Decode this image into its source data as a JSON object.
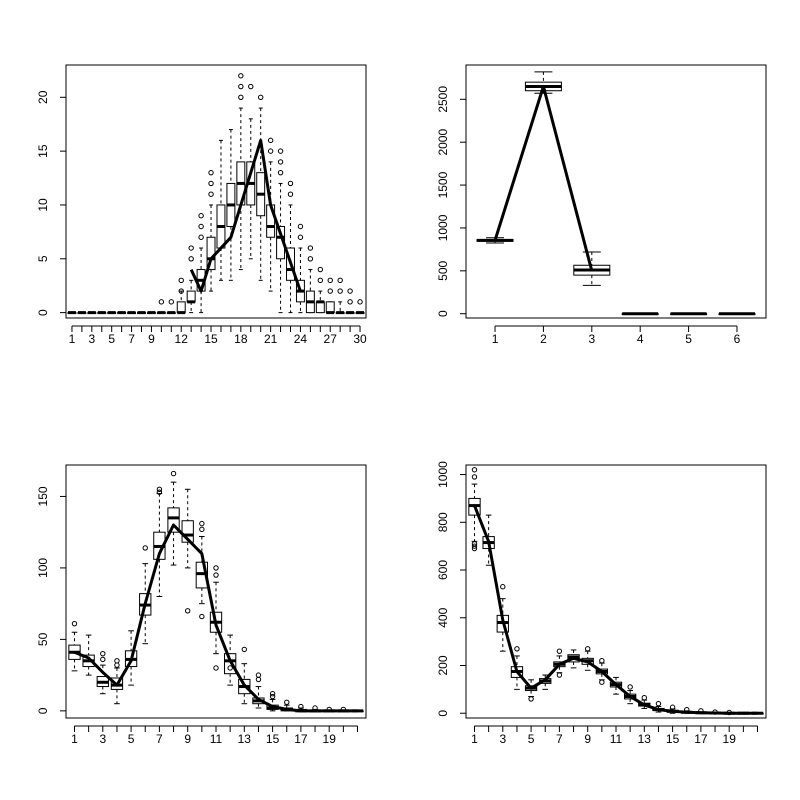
{
  "chart_data": [
    {
      "type": "box",
      "categories": [
        1,
        2,
        3,
        4,
        5,
        6,
        7,
        8,
        9,
        10,
        11,
        12,
        13,
        14,
        15,
        16,
        17,
        18,
        19,
        20,
        21,
        22,
        23,
        24,
        25,
        26,
        27,
        28,
        29,
        30
      ],
      "x_tick_labels": [
        "1",
        "3",
        "5",
        "7",
        "9",
        "12",
        "15",
        "18",
        "21",
        "24",
        "27",
        "30"
      ],
      "y_ticks": [
        0,
        5,
        10,
        15,
        20
      ],
      "ylim": [
        -0.5,
        23
      ],
      "boxes": [
        [
          0,
          0,
          0,
          0,
          0
        ],
        [
          0,
          0,
          0,
          0,
          0
        ],
        [
          0,
          0,
          0,
          0,
          0
        ],
        [
          0,
          0,
          0,
          0,
          0
        ],
        [
          0,
          0,
          0,
          0,
          0
        ],
        [
          0,
          0,
          0,
          0,
          0
        ],
        [
          0,
          0,
          0,
          0,
          0
        ],
        [
          0,
          0,
          0,
          0,
          0
        ],
        [
          0,
          0,
          0,
          0,
          0
        ],
        [
          0,
          0,
          0,
          0,
          0
        ],
        [
          0,
          0,
          0,
          0,
          0
        ],
        [
          0,
          0,
          0,
          1,
          2
        ],
        [
          0,
          1,
          1,
          2,
          3
        ],
        [
          0,
          2,
          3,
          4,
          6
        ],
        [
          2,
          4,
          5,
          7,
          10
        ],
        [
          3,
          6,
          8,
          10,
          16
        ],
        [
          3,
          8,
          10,
          12,
          17
        ],
        [
          4,
          10,
          12,
          14,
          19
        ],
        [
          5,
          10,
          12,
          14,
          18
        ],
        [
          3,
          9,
          11,
          13,
          19
        ],
        [
          2,
          7,
          8,
          10,
          14
        ],
        [
          0,
          5,
          7,
          8,
          12
        ],
        [
          0,
          3,
          4,
          6,
          10
        ],
        [
          0,
          1,
          2,
          3,
          6
        ],
        [
          0,
          0,
          1,
          2,
          4
        ],
        [
          0,
          0,
          1,
          1,
          2
        ],
        [
          0,
          0,
          0,
          1,
          1
        ],
        [
          0,
          0,
          0,
          0,
          1
        ],
        [
          0,
          0,
          0,
          0,
          0
        ],
        [
          0,
          0,
          0,
          0,
          0
        ]
      ],
      "outliers": [
        [
          10,
          1
        ],
        [
          11,
          1
        ],
        [
          12,
          2
        ],
        [
          12,
          3
        ],
        [
          13,
          5
        ],
        [
          13,
          6
        ],
        [
          14,
          7
        ],
        [
          14,
          8
        ],
        [
          14,
          9
        ],
        [
          15,
          11
        ],
        [
          15,
          12
        ],
        [
          15,
          13
        ],
        [
          18,
          20
        ],
        [
          18,
          21
        ],
        [
          18,
          22
        ],
        [
          19,
          21
        ],
        [
          20,
          20
        ],
        [
          21,
          15
        ],
        [
          21,
          16
        ],
        [
          22,
          13
        ],
        [
          22,
          14
        ],
        [
          22,
          15
        ],
        [
          23,
          11
        ],
        [
          23,
          12
        ],
        [
          24,
          7
        ],
        [
          24,
          8
        ],
        [
          25,
          5
        ],
        [
          25,
          6
        ],
        [
          26,
          3
        ],
        [
          26,
          4
        ],
        [
          27,
          2
        ],
        [
          27,
          3
        ],
        [
          28,
          2
        ],
        [
          28,
          3
        ],
        [
          29,
          1
        ],
        [
          29,
          2
        ],
        [
          30,
          1
        ]
      ],
      "line": [
        [
          13,
          4
        ],
        [
          14,
          2
        ],
        [
          15,
          5
        ],
        [
          17,
          7
        ],
        [
          20,
          16
        ],
        [
          21,
          10
        ],
        [
          24,
          2
        ]
      ]
    },
    {
      "type": "box",
      "categories": [
        1,
        2,
        3,
        4,
        5,
        6
      ],
      "x_tick_labels": [
        "1",
        "2",
        "3",
        "4",
        "5",
        "6"
      ],
      "y_ticks": [
        0,
        500,
        1000,
        1500,
        2000,
        2500
      ],
      "ylim": [
        -50,
        2900
      ],
      "boxes": [
        [
          825,
          845,
          855,
          865,
          885
        ],
        [
          2570,
          2600,
          2650,
          2700,
          2820
        ],
        [
          330,
          450,
          510,
          565,
          720
        ],
        [
          0,
          0,
          0,
          0,
          0
        ],
        [
          0,
          0,
          0,
          0,
          0
        ],
        [
          0,
          0,
          0,
          0,
          0
        ]
      ],
      "outliers": [],
      "line": [
        [
          1,
          855
        ],
        [
          2,
          2650
        ],
        [
          3,
          500
        ]
      ]
    },
    {
      "type": "box",
      "categories": [
        1,
        2,
        3,
        4,
        5,
        6,
        7,
        8,
        9,
        10,
        11,
        12,
        13,
        14,
        15,
        16,
        17,
        18,
        19,
        20,
        21
      ],
      "x_tick_labels": [
        "1",
        "3",
        "5",
        "7",
        "9",
        "11",
        "13",
        "15",
        "17",
        "19"
      ],
      "y_ticks": [
        0,
        50,
        100,
        150
      ],
      "ylim": [
        -5,
        172
      ],
      "boxes": [
        [
          28,
          36,
          41,
          46,
          55
        ],
        [
          25,
          31,
          35,
          39,
          53
        ],
        [
          12,
          17,
          20,
          24,
          32
        ],
        [
          5,
          15,
          18,
          23,
          30
        ],
        [
          18,
          31,
          36,
          42,
          56
        ],
        [
          47,
          67,
          74,
          82,
          103
        ],
        [
          80,
          106,
          115,
          125,
          152
        ],
        [
          102,
          125,
          135,
          142,
          160
        ],
        [
          100,
          118,
          123,
          133,
          155
        ],
        [
          75,
          86,
          96,
          104,
          122
        ],
        [
          40,
          55,
          62,
          69,
          90
        ],
        [
          18,
          26,
          35,
          40,
          53
        ],
        [
          5,
          12,
          17,
          22,
          33
        ],
        [
          2,
          5,
          7,
          9,
          17
        ],
        [
          0,
          1,
          2,
          4,
          8
        ],
        [
          0,
          0,
          1,
          2,
          4
        ],
        [
          0,
          0,
          0,
          1,
          2
        ],
        [
          0,
          0,
          0,
          0,
          1
        ],
        [
          0,
          0,
          0,
          0,
          0
        ],
        [
          0,
          0,
          0,
          0,
          0
        ],
        [
          0,
          0,
          0,
          0,
          0
        ]
      ],
      "outliers": [
        [
          1,
          61
        ],
        [
          3,
          36
        ],
        [
          3,
          40
        ],
        [
          4,
          32
        ],
        [
          4,
          35
        ],
        [
          6,
          114
        ],
        [
          7,
          153
        ],
        [
          7,
          155
        ],
        [
          8,
          166
        ],
        [
          9,
          70
        ],
        [
          10,
          66
        ],
        [
          10,
          127
        ],
        [
          10,
          131
        ],
        [
          11,
          30
        ],
        [
          11,
          95
        ],
        [
          11,
          100
        ],
        [
          12,
          30
        ],
        [
          13,
          43
        ],
        [
          14,
          22
        ],
        [
          14,
          25
        ],
        [
          15,
          10
        ],
        [
          15,
          12
        ],
        [
          16,
          6
        ],
        [
          17,
          3
        ],
        [
          18,
          2
        ],
        [
          19,
          1
        ],
        [
          20,
          1
        ]
      ],
      "line": [
        [
          1,
          41
        ],
        [
          2,
          37
        ],
        [
          3,
          27
        ],
        [
          4,
          18
        ],
        [
          5,
          35
        ],
        [
          6,
          75
        ],
        [
          7,
          110
        ],
        [
          8,
          130
        ],
        [
          9,
          120
        ],
        [
          10,
          110
        ],
        [
          11,
          60
        ],
        [
          12,
          35
        ],
        [
          13,
          18
        ],
        [
          14,
          8
        ],
        [
          15,
          3
        ],
        [
          16,
          1
        ],
        [
          17,
          0
        ],
        [
          18,
          0
        ],
        [
          19,
          0
        ],
        [
          20,
          0
        ],
        [
          21,
          0
        ]
      ]
    },
    {
      "type": "box",
      "categories": [
        1,
        2,
        3,
        4,
        5,
        6,
        7,
        8,
        9,
        10,
        11,
        12,
        13,
        14,
        15,
        16,
        17,
        18,
        19,
        20,
        21
      ],
      "x_tick_labels": [
        "1",
        "3",
        "5",
        "7",
        "9",
        "11",
        "13",
        "15",
        "17",
        "19"
      ],
      "y_ticks": [
        0,
        200,
        400,
        600,
        800,
        1000
      ],
      "ylim": [
        -20,
        1040
      ],
      "boxes": [
        [
          720,
          830,
          870,
          900,
          960
        ],
        [
          620,
          690,
          715,
          740,
          830
        ],
        [
          260,
          340,
          380,
          410,
          480
        ],
        [
          100,
          150,
          175,
          195,
          240
        ],
        [
          70,
          95,
          105,
          115,
          140
        ],
        [
          100,
          125,
          135,
          145,
          160
        ],
        [
          170,
          195,
          205,
          215,
          240
        ],
        [
          190,
          215,
          235,
          245,
          265
        ],
        [
          180,
          205,
          220,
          230,
          260
        ],
        [
          140,
          165,
          175,
          185,
          210
        ],
        [
          80,
          110,
          120,
          130,
          150
        ],
        [
          40,
          60,
          70,
          80,
          95
        ],
        [
          20,
          30,
          35,
          42,
          55
        ],
        [
          5,
          12,
          15,
          20,
          28
        ],
        [
          0,
          5,
          8,
          12,
          18
        ],
        [
          0,
          2,
          4,
          6,
          10
        ],
        [
          0,
          1,
          2,
          3,
          5
        ],
        [
          0,
          0,
          1,
          2,
          3
        ],
        [
          0,
          0,
          0,
          1,
          2
        ],
        [
          0,
          0,
          0,
          0,
          0
        ],
        [
          0,
          0,
          0,
          0,
          0
        ]
      ],
      "outliers": [
        [
          1,
          690
        ],
        [
          1,
          700
        ],
        [
          1,
          710
        ],
        [
          1,
          1020
        ],
        [
          1,
          990
        ],
        [
          3,
          530
        ],
        [
          4,
          270
        ],
        [
          5,
          60
        ],
        [
          7,
          160
        ],
        [
          7,
          260
        ],
        [
          9,
          270
        ],
        [
          10,
          130
        ],
        [
          10,
          220
        ],
        [
          12,
          110
        ],
        [
          13,
          65
        ],
        [
          14,
          40
        ],
        [
          15,
          25
        ],
        [
          16,
          15
        ],
        [
          17,
          10
        ],
        [
          18,
          5
        ],
        [
          19,
          3
        ]
      ],
      "line": [
        [
          1,
          870
        ],
        [
          2,
          720
        ],
        [
          3,
          390
        ],
        [
          4,
          175
        ],
        [
          5,
          105
        ],
        [
          6,
          140
        ],
        [
          7,
          205
        ],
        [
          8,
          230
        ],
        [
          9,
          215
        ],
        [
          10,
          175
        ],
        [
          11,
          120
        ],
        [
          12,
          70
        ],
        [
          13,
          35
        ],
        [
          14,
          15
        ],
        [
          15,
          8
        ],
        [
          16,
          4
        ],
        [
          17,
          2
        ],
        [
          18,
          1
        ],
        [
          19,
          0
        ],
        [
          20,
          0
        ],
        [
          21,
          0
        ]
      ]
    }
  ]
}
